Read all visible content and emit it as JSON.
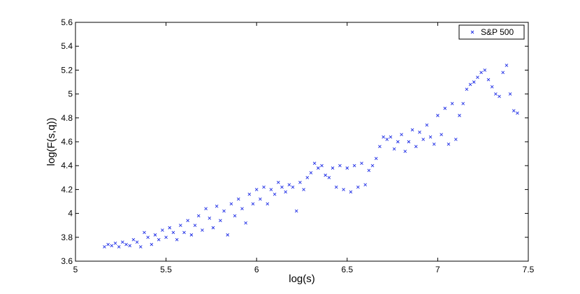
{
  "chart_data": {
    "type": "scatter",
    "title": "",
    "xlabel": "log(s)",
    "ylabel": "log(F(s,q))",
    "xlim": [
      5,
      7.5
    ],
    "ylim": [
      3.6,
      5.6
    ],
    "xticks": [
      "5",
      "5.5",
      "6",
      "6.5",
      "7",
      "7.5"
    ],
    "yticks": [
      "3.6",
      "3.8",
      "4",
      "4.2",
      "4.4",
      "4.6",
      "4.8",
      "5",
      "5.2",
      "5.4",
      "5.6"
    ],
    "grid": false,
    "legend_position": "top-right",
    "marker": "x",
    "color": "#1f2ee6",
    "series": [
      {
        "name": "S&P 500",
        "points": [
          [
            5.16,
            3.72
          ],
          [
            5.18,
            3.74
          ],
          [
            5.2,
            3.73
          ],
          [
            5.22,
            3.75
          ],
          [
            5.24,
            3.72
          ],
          [
            5.26,
            3.76
          ],
          [
            5.28,
            3.74
          ],
          [
            5.3,
            3.73
          ],
          [
            5.32,
            3.78
          ],
          [
            5.34,
            3.76
          ],
          [
            5.36,
            3.72
          ],
          [
            5.38,
            3.84
          ],
          [
            5.4,
            3.8
          ],
          [
            5.42,
            3.74
          ],
          [
            5.44,
            3.82
          ],
          [
            5.46,
            3.78
          ],
          [
            5.48,
            3.86
          ],
          [
            5.5,
            3.8
          ],
          [
            5.52,
            3.88
          ],
          [
            5.54,
            3.84
          ],
          [
            5.56,
            3.78
          ],
          [
            5.58,
            3.9
          ],
          [
            5.6,
            3.84
          ],
          [
            5.62,
            3.94
          ],
          [
            5.64,
            3.82
          ],
          [
            5.66,
            3.9
          ],
          [
            5.68,
            3.98
          ],
          [
            5.7,
            3.86
          ],
          [
            5.72,
            4.04
          ],
          [
            5.74,
            3.96
          ],
          [
            5.76,
            3.88
          ],
          [
            5.78,
            4.06
          ],
          [
            5.8,
            3.94
          ],
          [
            5.82,
            4.02
          ],
          [
            5.84,
            3.82
          ],
          [
            5.86,
            4.08
          ],
          [
            5.88,
            3.98
          ],
          [
            5.9,
            4.12
          ],
          [
            5.92,
            4.04
          ],
          [
            5.94,
            3.92
          ],
          [
            5.96,
            4.16
          ],
          [
            5.98,
            4.08
          ],
          [
            6.0,
            4.2
          ],
          [
            6.02,
            4.12
          ],
          [
            6.04,
            4.22
          ],
          [
            6.06,
            4.08
          ],
          [
            6.08,
            4.2
          ],
          [
            6.1,
            4.16
          ],
          [
            6.12,
            4.26
          ],
          [
            6.14,
            4.22
          ],
          [
            6.16,
            4.18
          ],
          [
            6.18,
            4.24
          ],
          [
            6.2,
            4.22
          ],
          [
            6.22,
            4.02
          ],
          [
            6.24,
            4.26
          ],
          [
            6.26,
            4.2
          ],
          [
            6.28,
            4.3
          ],
          [
            6.3,
            4.34
          ],
          [
            6.32,
            4.42
          ],
          [
            6.34,
            4.38
          ],
          [
            6.36,
            4.4
          ],
          [
            6.38,
            4.32
          ],
          [
            6.4,
            4.3
          ],
          [
            6.42,
            4.38
          ],
          [
            6.44,
            4.22
          ],
          [
            6.46,
            4.4
          ],
          [
            6.48,
            4.2
          ],
          [
            6.5,
            4.38
          ],
          [
            6.52,
            4.18
          ],
          [
            6.54,
            4.4
          ],
          [
            6.56,
            4.22
          ],
          [
            6.58,
            4.42
          ],
          [
            6.6,
            4.24
          ],
          [
            6.62,
            4.36
          ],
          [
            6.64,
            4.4
          ],
          [
            6.66,
            4.46
          ],
          [
            6.68,
            4.56
          ],
          [
            6.7,
            4.64
          ],
          [
            6.72,
            4.62
          ],
          [
            6.74,
            4.64
          ],
          [
            6.76,
            4.54
          ],
          [
            6.78,
            4.6
          ],
          [
            6.8,
            4.66
          ],
          [
            6.82,
            4.52
          ],
          [
            6.84,
            4.6
          ],
          [
            6.86,
            4.7
          ],
          [
            6.88,
            4.56
          ],
          [
            6.9,
            4.68
          ],
          [
            6.92,
            4.62
          ],
          [
            6.94,
            4.74
          ],
          [
            6.96,
            4.64
          ],
          [
            6.98,
            4.58
          ],
          [
            7.0,
            4.82
          ],
          [
            7.02,
            4.66
          ],
          [
            7.04,
            4.88
          ],
          [
            7.06,
            4.58
          ],
          [
            7.08,
            4.92
          ],
          [
            7.1,
            4.62
          ],
          [
            7.12,
            4.82
          ],
          [
            7.14,
            4.92
          ],
          [
            7.16,
            5.04
          ],
          [
            7.18,
            5.08
          ],
          [
            7.2,
            5.1
          ],
          [
            7.22,
            5.14
          ],
          [
            7.24,
            5.18
          ],
          [
            7.26,
            5.2
          ],
          [
            7.28,
            5.12
          ],
          [
            7.3,
            5.06
          ],
          [
            7.32,
            5.0
          ],
          [
            7.34,
            4.98
          ],
          [
            7.36,
            5.18
          ],
          [
            7.38,
            5.24
          ],
          [
            7.4,
            5.0
          ],
          [
            7.42,
            4.86
          ],
          [
            7.44,
            4.84
          ]
        ]
      }
    ]
  }
}
